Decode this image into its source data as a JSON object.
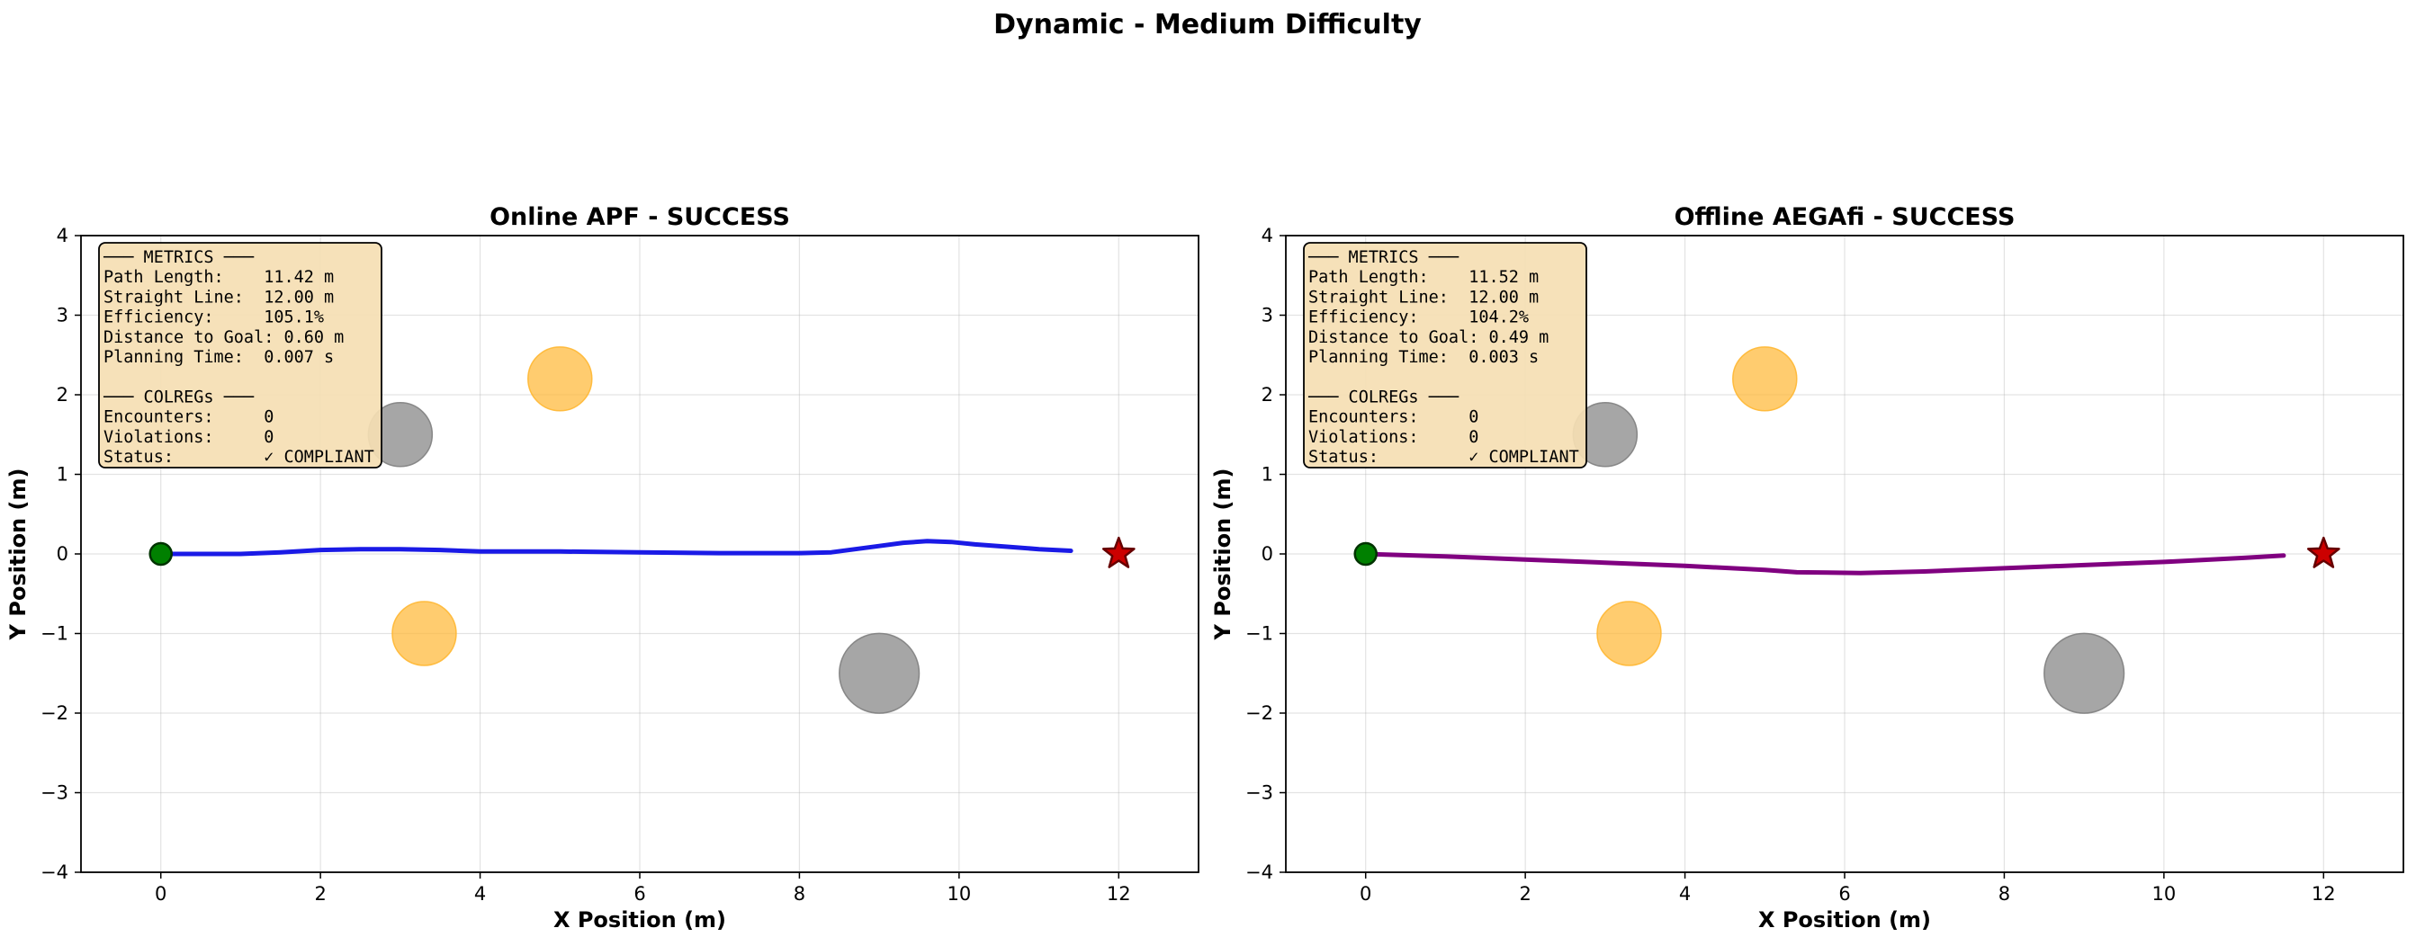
{
  "figure": {
    "title": "Dynamic - Medium Difficulty"
  },
  "chart_data": [
    {
      "type": "scatter",
      "title": "Online APF - SUCCESS",
      "xlabel": "X Position (m)",
      "ylabel": "Y Position (m)",
      "xlim": [
        -1,
        13
      ],
      "ylim": [
        -4,
        4
      ],
      "xticks": [
        0,
        2,
        4,
        6,
        8,
        10,
        12
      ],
      "yticks": [
        -4,
        -3,
        -2,
        -1,
        0,
        1,
        2,
        3,
        4
      ],
      "grid": true,
      "start": {
        "x": 0,
        "y": 0,
        "color": "#008000"
      },
      "goal": {
        "x": 12,
        "y": 0,
        "color": "#cc0000"
      },
      "obstacles": [
        {
          "kind": "static",
          "x": 3.0,
          "y": 1.5,
          "r": 0.4,
          "color": "#808080"
        },
        {
          "kind": "static",
          "x": 9.0,
          "y": -1.5,
          "r": 0.5,
          "color": "#808080"
        },
        {
          "kind": "dynamic",
          "x": 5.0,
          "y": 2.2,
          "r": 0.4,
          "color": "#ffb732"
        },
        {
          "kind": "dynamic",
          "x": 3.3,
          "y": -1.0,
          "r": 0.4,
          "color": "#ffb732"
        }
      ],
      "path": {
        "color": "#1a1ae6",
        "x": [
          0,
          0.5,
          1.0,
          1.5,
          2.0,
          2.5,
          3.0,
          3.5,
          4.0,
          5.0,
          6.0,
          7.0,
          8.0,
          8.4,
          8.7,
          9.0,
          9.3,
          9.6,
          9.9,
          10.2,
          10.6,
          11.0,
          11.4
        ],
        "y": [
          0,
          0,
          0,
          0.02,
          0.05,
          0.06,
          0.06,
          0.05,
          0.03,
          0.03,
          0.02,
          0.01,
          0.01,
          0.02,
          0.06,
          0.1,
          0.14,
          0.16,
          0.15,
          0.12,
          0.09,
          0.06,
          0.04
        ]
      },
      "metrics_box": [
        "─── METRICS ───",
        "Path Length:    11.42 m",
        "Straight Line:  12.00 m",
        "Efficiency:     105.1%",
        "Distance to Goal: 0.60 m",
        "Planning Time:  0.007 s",
        "",
        "─── COLREGs ───",
        "Encounters:     0",
        "Violations:     0",
        "Status:         ✓ COMPLIANT"
      ]
    },
    {
      "type": "scatter",
      "title": "Offline AEGAfi - SUCCESS",
      "xlabel": "X Position (m)",
      "ylabel": "Y Position (m)",
      "xlim": [
        -1,
        13
      ],
      "ylim": [
        -4,
        4
      ],
      "xticks": [
        0,
        2,
        4,
        6,
        8,
        10,
        12
      ],
      "yticks": [
        -4,
        -3,
        -2,
        -1,
        0,
        1,
        2,
        3,
        4
      ],
      "grid": true,
      "start": {
        "x": 0,
        "y": 0,
        "color": "#008000"
      },
      "goal": {
        "x": 12,
        "y": 0,
        "color": "#cc0000"
      },
      "obstacles": [
        {
          "kind": "static",
          "x": 3.0,
          "y": 1.5,
          "r": 0.4,
          "color": "#808080"
        },
        {
          "kind": "static",
          "x": 9.0,
          "y": -1.5,
          "r": 0.5,
          "color": "#808080"
        },
        {
          "kind": "dynamic",
          "x": 5.0,
          "y": 2.2,
          "r": 0.4,
          "color": "#ffb732"
        },
        {
          "kind": "dynamic",
          "x": 3.3,
          "y": -1.0,
          "r": 0.4,
          "color": "#ffb732"
        }
      ],
      "path": {
        "color": "#800080",
        "x": [
          0,
          1.0,
          2.0,
          3.0,
          4.0,
          5.0,
          5.4,
          6.2,
          7.0,
          8.0,
          9.0,
          10.0,
          11.0,
          11.5
        ],
        "y": [
          0,
          -0.03,
          -0.07,
          -0.11,
          -0.15,
          -0.2,
          -0.23,
          -0.24,
          -0.22,
          -0.18,
          -0.14,
          -0.1,
          -0.05,
          -0.02
        ]
      },
      "metrics_box": [
        "─── METRICS ───",
        "Path Length:    11.52 m",
        "Straight Line:  12.00 m",
        "Efficiency:     104.2%",
        "Distance to Goal: 0.49 m",
        "Planning Time:  0.003 s",
        "",
        "─── COLREGs ───",
        "Encounters:     0",
        "Violations:     0",
        "Status:         ✓ COMPLIANT"
      ]
    }
  ]
}
